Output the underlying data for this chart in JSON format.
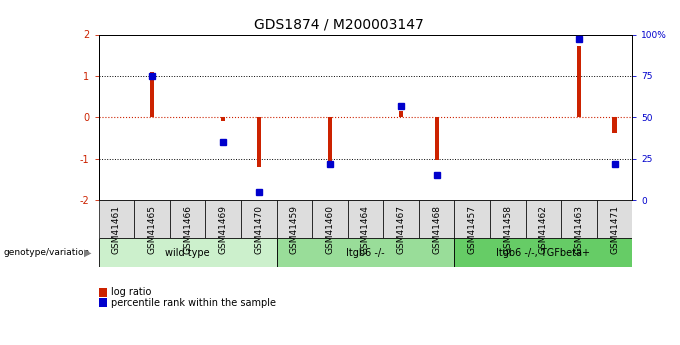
{
  "title": "GDS1874 / M200003147",
  "samples": [
    "GSM41461",
    "GSM41465",
    "GSM41466",
    "GSM41469",
    "GSM41470",
    "GSM41459",
    "GSM41460",
    "GSM41464",
    "GSM41467",
    "GSM41468",
    "GSM41457",
    "GSM41458",
    "GSM41462",
    "GSM41463",
    "GSM41471"
  ],
  "log_ratio": [
    0.0,
    1.1,
    0.0,
    -0.1,
    -1.2,
    0.0,
    -1.22,
    0.0,
    0.15,
    -1.02,
    0.0,
    0.0,
    0.0,
    1.72,
    -0.38
  ],
  "percentile_rank": [
    null,
    75,
    null,
    35,
    5,
    null,
    22,
    null,
    57,
    15,
    null,
    null,
    null,
    97,
    22
  ],
  "groups": [
    {
      "label": "wild type",
      "start": 0,
      "end": 5,
      "color": "#ccf0cc"
    },
    {
      "label": "Itgb6 -/-",
      "start": 5,
      "end": 10,
      "color": "#99dd99"
    },
    {
      "label": "Itgb6 -/-, TGFbeta+",
      "start": 10,
      "end": 15,
      "color": "#66cc66"
    }
  ],
  "ylim": [
    -2,
    2
  ],
  "right_ylim": [
    0,
    100
  ],
  "right_yticks": [
    0,
    25,
    50,
    75,
    100
  ],
  "right_yticklabels": [
    "0",
    "25",
    "50",
    "75",
    "100%"
  ],
  "bar_color": "#cc2200",
  "dot_color": "#0000cc",
  "bg_color": "#ffffff",
  "tick_label_bg": "#dddddd",
  "legend_bar_label": "log ratio",
  "legend_dot_label": "percentile rank within the sample",
  "genotype_label": "genotype/variation",
  "title_fontsize": 10,
  "tick_fontsize": 6.5,
  "label_fontsize": 7.5
}
